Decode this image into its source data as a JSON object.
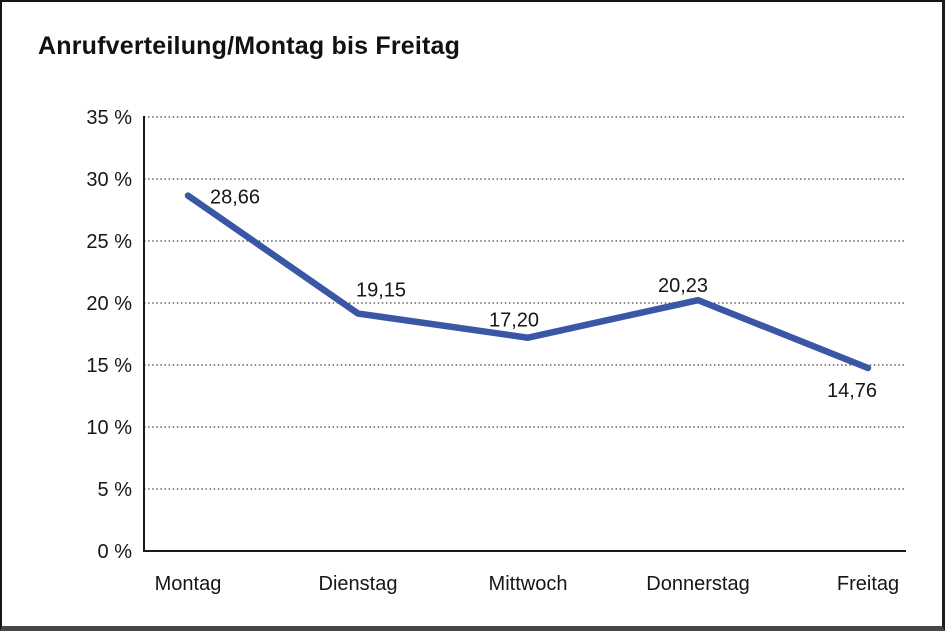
{
  "chart": {
    "title": "Anrufverteilung/Montag bis Freitag"
  },
  "chart_data": {
    "type": "line",
    "title": "Anrufverteilung/Montag bis Freitag",
    "categories": [
      "Montag",
      "Dienstag",
      "Mittwoch",
      "Donnerstag",
      "Freitag"
    ],
    "series": [
      {
        "name": "Anrufverteilung",
        "values": [
          28.66,
          19.15,
          17.2,
          20.23,
          14.76
        ],
        "value_labels": [
          "28,66",
          "19,15",
          "17,20",
          "20,23",
          "14,76"
        ],
        "color": "#3A57A6"
      }
    ],
    "xlabel": "",
    "ylabel": "",
    "ylim": [
      0,
      35
    ],
    "ytick_step": 5,
    "ytick_labels": [
      "0 %",
      "5 %",
      "10 %",
      "15 %",
      "20 %",
      "25 %",
      "30 %",
      "35 %"
    ],
    "grid": "horizontal dotted gridlines at every 5 %",
    "legend": "none",
    "colors": {
      "line": "#3A57A6",
      "axis": "#1a1a1a",
      "gridline": "#444444",
      "text": "#161616",
      "background": "#ffffff"
    }
  }
}
